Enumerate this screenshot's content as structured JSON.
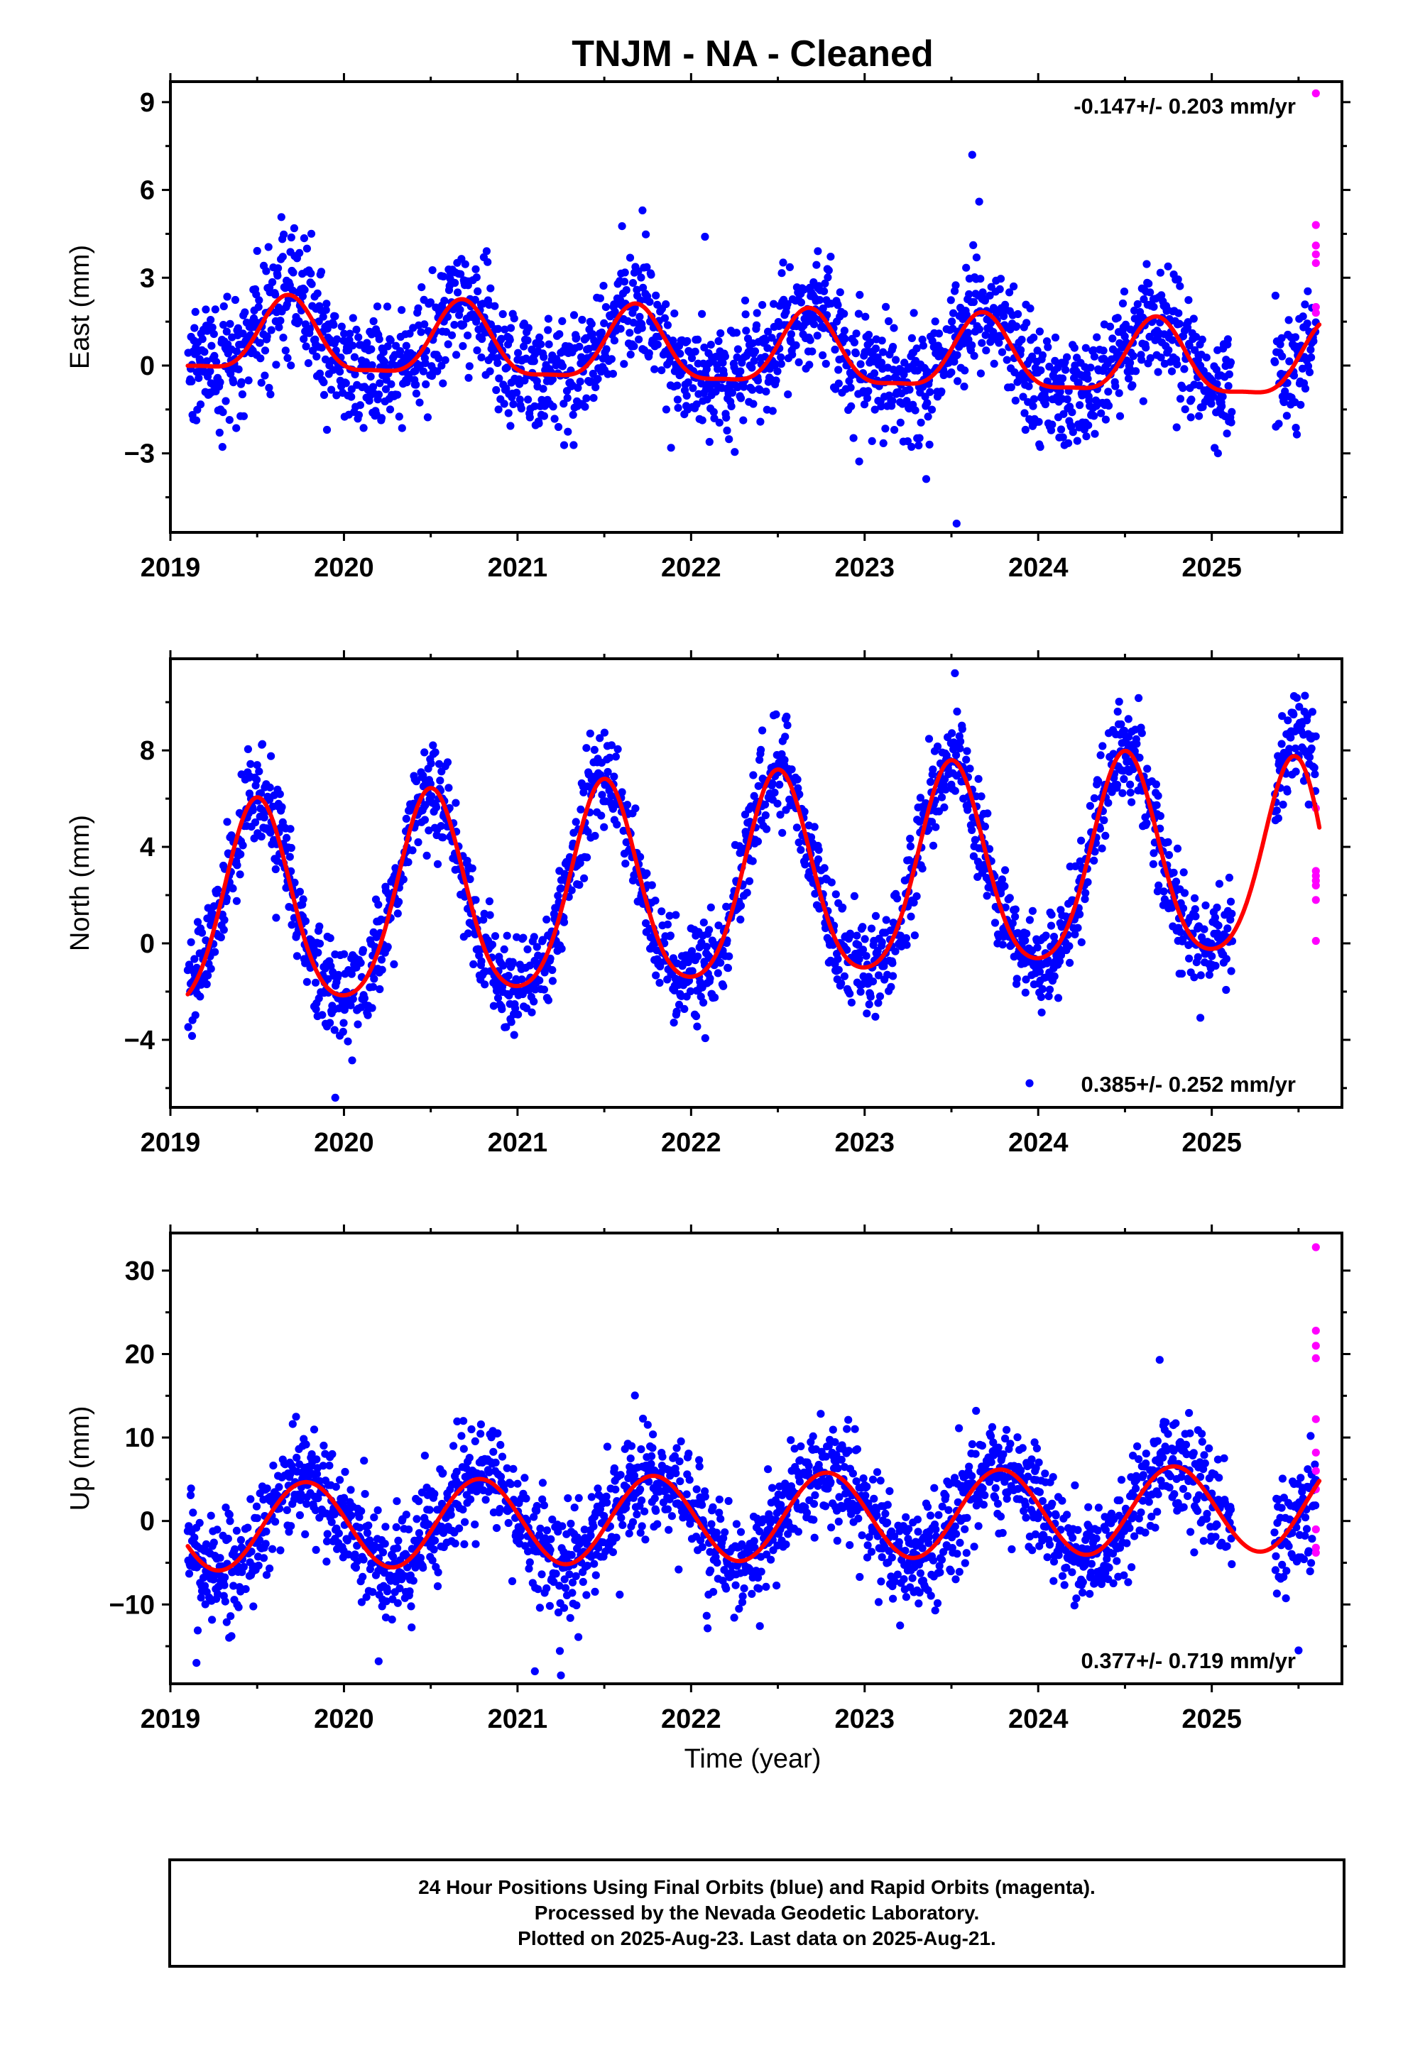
{
  "title": "TNJM  - NA - Cleaned",
  "xlabel": "Time (year)",
  "colors": {
    "final": "#0000ff",
    "rapid": "#ff00ff",
    "fit": "#ff0000",
    "axis": "#000000"
  },
  "footer": {
    "line1": "24 Hour Positions Using Final Orbits (blue) and Rapid Orbits (magenta).",
    "line2": "Processed by the Nevada Geodetic Laboratory.",
    "line3": "Plotted on 2025-Aug-23. Last data on 2025-Aug-21."
  },
  "chart_data": [
    {
      "type": "scatter",
      "component": "east",
      "ylabel": "East (mm)",
      "rate": "-0.147+/- 0.203 mm/yr",
      "rate_position": "top-right",
      "xlim": [
        2019.0,
        2025.75
      ],
      "ylim": [
        -5.7,
        9.7
      ],
      "x_ticks": [
        2019,
        2020,
        2021,
        2022,
        2023,
        2024,
        2025
      ],
      "x_tick_labels": [
        "2019",
        "2020",
        "2021",
        "2022",
        "2023",
        "2024",
        "2025"
      ],
      "y_ticks": [
        -3,
        0,
        3,
        6,
        9
      ],
      "y_tick_labels": [
        "−3",
        "0",
        "3",
        "6",
        "9"
      ],
      "data_span": [
        2019.1,
        2025.6
      ],
      "gap": [
        2025.12,
        2025.36
      ],
      "model": {
        "offset": 0.9,
        "trend": -0.147,
        "annual_amp": 1.25,
        "annual_peak": 0.68,
        "semi_amp": 0.35,
        "semi_peak": 0.68,
        "t0": 2019.1
      },
      "scatter_sigma": 1.0,
      "fit_endpoint": 1.4,
      "outliers": [
        [
          2023.53,
          -5.4
        ],
        [
          2023.62,
          7.2
        ],
        [
          2022.08,
          4.4
        ],
        [
          2021.72,
          5.3
        ],
        [
          2023.66,
          5.6
        ]
      ],
      "rapid_points": [
        [
          2025.6,
          9.3
        ],
        [
          2025.6,
          4.8
        ],
        [
          2025.6,
          4.1
        ],
        [
          2025.6,
          3.8
        ],
        [
          2025.6,
          3.5
        ],
        [
          2025.6,
          2.0
        ],
        [
          2025.6,
          1.8
        ]
      ]
    },
    {
      "type": "scatter",
      "component": "north",
      "ylabel": "North (mm)",
      "rate": "0.385+/- 0.252 mm/yr",
      "rate_position": "bottom-right",
      "xlim": [
        2019.0,
        2025.75
      ],
      "ylim": [
        -6.8,
        11.8
      ],
      "x_ticks": [
        2019,
        2020,
        2021,
        2022,
        2023,
        2024,
        2025
      ],
      "x_tick_labels": [
        "2019",
        "2020",
        "2021",
        "2022",
        "2023",
        "2024",
        "2025"
      ],
      "y_ticks": [
        -4,
        0,
        4,
        8
      ],
      "y_tick_labels": [
        "−4",
        "0",
        "4",
        "8"
      ],
      "data_span": [
        2019.1,
        2025.6
      ],
      "gap": [
        2025.12,
        2025.36
      ],
      "model": {
        "offset": 1.1,
        "trend": 0.385,
        "annual_amp": 4.2,
        "annual_peak": 0.5,
        "semi_amp": 0.6,
        "semi_peak": 0.0,
        "t0": 2019.1
      },
      "scatter_sigma": 1.0,
      "fit_endpoint": 4.8,
      "outliers": [
        [
          2023.52,
          11.2
        ],
        [
          2022.55,
          9.4
        ],
        [
          2024.52,
          9.3
        ],
        [
          2025.58,
          9.6
        ],
        [
          2019.95,
          -6.4
        ],
        [
          2023.95,
          -5.8
        ]
      ],
      "rapid_points": [
        [
          2025.6,
          5.6
        ],
        [
          2025.6,
          3.0
        ],
        [
          2025.6,
          2.8
        ],
        [
          2025.6,
          2.6
        ],
        [
          2025.6,
          2.4
        ],
        [
          2025.6,
          1.8
        ],
        [
          2025.6,
          0.1
        ]
      ]
    },
    {
      "type": "scatter",
      "component": "up",
      "ylabel": "Up (mm)",
      "rate": "0.377+/- 0.719 mm/yr",
      "rate_position": "bottom-right",
      "xlim": [
        2019.0,
        2025.75
      ],
      "ylim": [
        -19.5,
        34.5
      ],
      "x_ticks": [
        2019,
        2020,
        2021,
        2022,
        2023,
        2024,
        2025
      ],
      "x_tick_labels": [
        "2019",
        "2020",
        "2021",
        "2022",
        "2023",
        "2024",
        "2025"
      ],
      "y_ticks": [
        -10,
        0,
        10,
        20,
        30
      ],
      "y_tick_labels": [
        "−10",
        "0",
        "10",
        "20",
        "30"
      ],
      "data_span": [
        2019.1,
        2025.6
      ],
      "gap": [
        2025.12,
        2025.36
      ],
      "model": {
        "offset": -0.8,
        "trend": 0.377,
        "annual_amp": 5.2,
        "annual_peak": 0.78,
        "semi_amp": 0.0,
        "semi_peak": 0.0,
        "t0": 2019.1
      },
      "scatter_sigma": 3.2,
      "fit_endpoint": 4.8,
      "outliers": [
        [
          2024.7,
          19.3
        ],
        [
          2021.25,
          -18.5
        ],
        [
          2021.1,
          -18.0
        ],
        [
          2019.15,
          -17.0
        ],
        [
          2020.2,
          -16.8
        ],
        [
          2025.5,
          -15.5
        ]
      ],
      "rapid_points": [
        [
          2025.6,
          32.8
        ],
        [
          2025.6,
          22.8
        ],
        [
          2025.6,
          21.0
        ],
        [
          2025.6,
          19.5
        ],
        [
          2025.6,
          12.2
        ],
        [
          2025.6,
          8.2
        ],
        [
          2025.6,
          6.0
        ],
        [
          2025.6,
          3.8
        ],
        [
          2025.6,
          -1.0
        ],
        [
          2025.6,
          -3.2
        ],
        [
          2025.6,
          -3.8
        ]
      ]
    }
  ]
}
